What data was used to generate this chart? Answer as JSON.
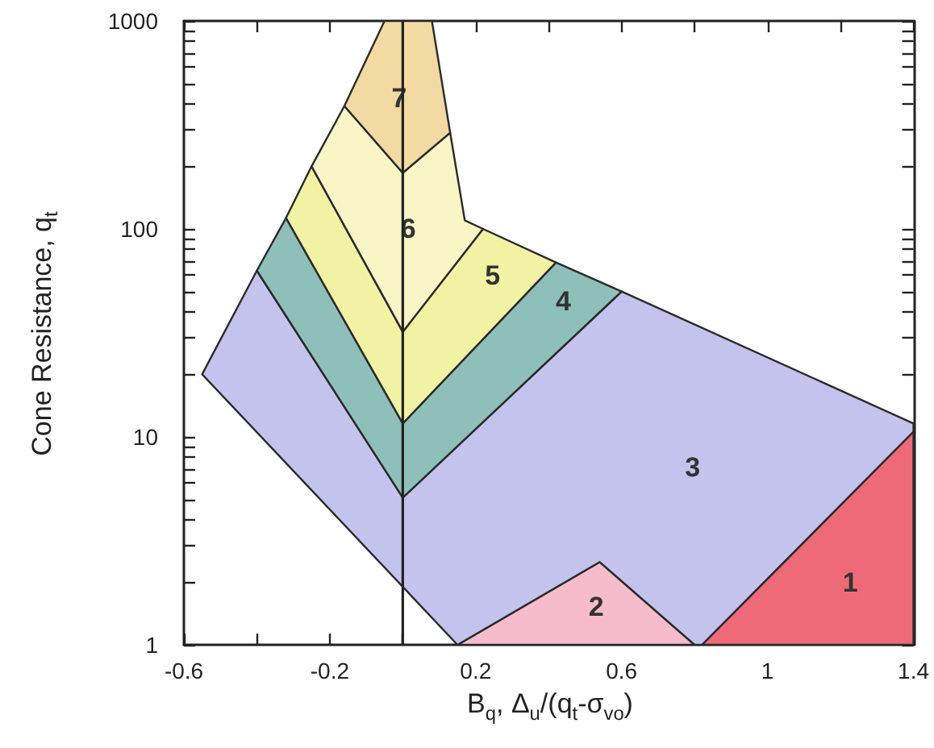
{
  "chart_data": {
    "type": "area",
    "xlabel": "B$_{q}$, Δ$_{u}$/(q$_{t}$-σ$_{vo}$)",
    "ylabel": "Cone Resistance, q$_{t}$",
    "log": "y",
    "xlim": [
      -0.6,
      1.4
    ],
    "ylim": [
      1,
      1000
    ],
    "xticks": [
      -0.6,
      {
        "value": -0.4,
        "label": null
      },
      -0.2,
      {
        "value": 0,
        "label": null
      },
      0.2,
      {
        "value": 0.4,
        "label": null
      },
      0.6,
      {
        "value": 0.8,
        "label": null
      },
      1,
      {
        "value": 1.2,
        "label": null
      },
      1.4
    ],
    "yticks": [
      1,
      {
        "value": 2,
        "label": null
      },
      {
        "value": 3,
        "label": null
      },
      {
        "value": 4,
        "label": null
      },
      {
        "value": 5,
        "label": null
      },
      {
        "value": 6,
        "label": null
      },
      {
        "value": 7,
        "label": null
      },
      {
        "value": 8,
        "label": null
      },
      {
        "value": 9,
        "label": null
      },
      10,
      {
        "value": 20,
        "label": null
      },
      {
        "value": 30,
        "label": null
      },
      {
        "value": 40,
        "label": null
      },
      {
        "value": 50,
        "label": null
      },
      {
        "value": 60,
        "label": null
      },
      {
        "value": 70,
        "label": null
      },
      {
        "value": 80,
        "label": null
      },
      {
        "value": 90,
        "label": null
      },
      100,
      {
        "value": 200,
        "label": null
      },
      {
        "value": 300,
        "label": null
      },
      {
        "value": 400,
        "label": null
      },
      {
        "value": 500,
        "label": null
      },
      {
        "value": 600,
        "label": null
      },
      {
        "value": 700,
        "label": null
      },
      {
        "value": 800,
        "label": null
      },
      {
        "value": 900,
        "label": null
      },
      1000
    ],
    "series": [
      {
        "name": "1",
        "color": "#ee6a78",
        "x": [
          0.82,
          1.4,
          1.4
        ],
        "values": [
          1,
          10.6,
          1
        ]
      },
      {
        "name": "2",
        "color": "#f7bccb",
        "x": [
          0.15,
          0.54,
          0.8
        ],
        "values": [
          1,
          2.5,
          1
        ]
      },
      {
        "name": "3",
        "color": "#c3c3ee",
        "x": [
          -0.4,
          0,
          0.6,
          1.4,
          1.4,
          0.82,
          0.8,
          0.54,
          0.15,
          -0.55
        ],
        "values": [
          63,
          5.1,
          50,
          11.6,
          10.6,
          1,
          1,
          2.5,
          1,
          20
        ]
      },
      {
        "name": "4",
        "color": "#8fbfb9",
        "x": [
          -0.4,
          -0.32,
          0,
          0.42,
          0.6,
          0
        ],
        "values": [
          63,
          113,
          11.6,
          69,
          50,
          5.1
        ]
      },
      {
        "name": "5",
        "color": "#f2f2a4",
        "x": [
          -0.32,
          -0.25,
          0,
          0.22,
          0.42,
          0
        ],
        "values": [
          113,
          200,
          32,
          100,
          69,
          11.6
        ]
      },
      {
        "name": "6",
        "color": "#f8f5c6",
        "x": [
          -0.25,
          -0.16,
          0,
          0.13,
          0.17,
          0.22,
          0
        ],
        "values": [
          200,
          390,
          186,
          290,
          110,
          100,
          32
        ]
      },
      {
        "name": "7",
        "color": "#f3daa2",
        "x": [
          -0.16,
          -0.05,
          0.08,
          0.13,
          0
        ],
        "values": [
          390,
          1000,
          1000,
          290,
          186
        ]
      }
    ],
    "ref_lines": [
      {
        "axis": "x",
        "value": 0,
        "color": "#222222"
      }
    ]
  }
}
